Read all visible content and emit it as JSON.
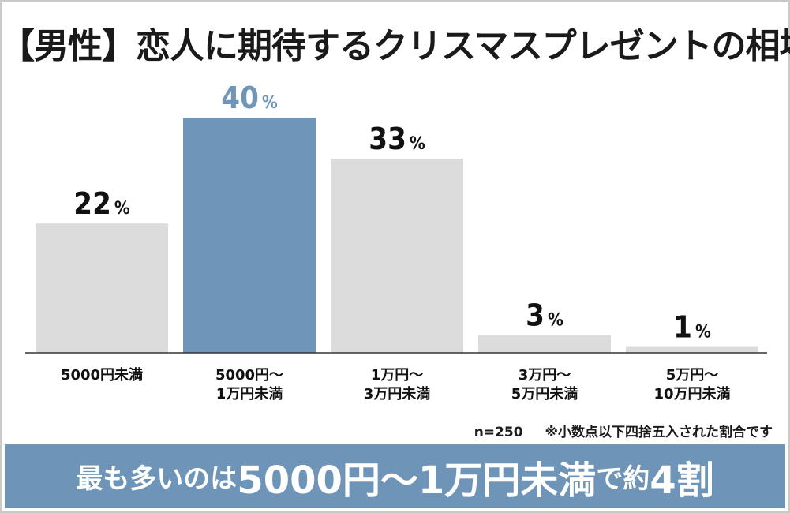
{
  "chart_data": {
    "type": "bar",
    "title": "【男性】恋人に期待するクリスマスプレゼントの相場",
    "categories": [
      "5000円未満",
      "5000円〜\n1万円未満",
      "1万円〜\n3万円未満",
      "3万円〜\n5万円未満",
      "5万円〜\n10万円未満"
    ],
    "values": [
      22,
      40,
      33,
      3,
      1
    ],
    "value_suffix": "%",
    "highlight_index": 1,
    "ylim": [
      0,
      40
    ],
    "grid": false,
    "colors": {
      "default": "#dcdcdc",
      "highlight": "#6f95b8",
      "axis": "#333333"
    }
  },
  "note": {
    "sample": "n=250",
    "rounding": "※小数点以下四捨五入された割合です"
  },
  "footer": {
    "part1": "最も多いのは",
    "part2": "5000円〜1万円未満",
    "part3": "で約",
    "part4": "4割"
  }
}
